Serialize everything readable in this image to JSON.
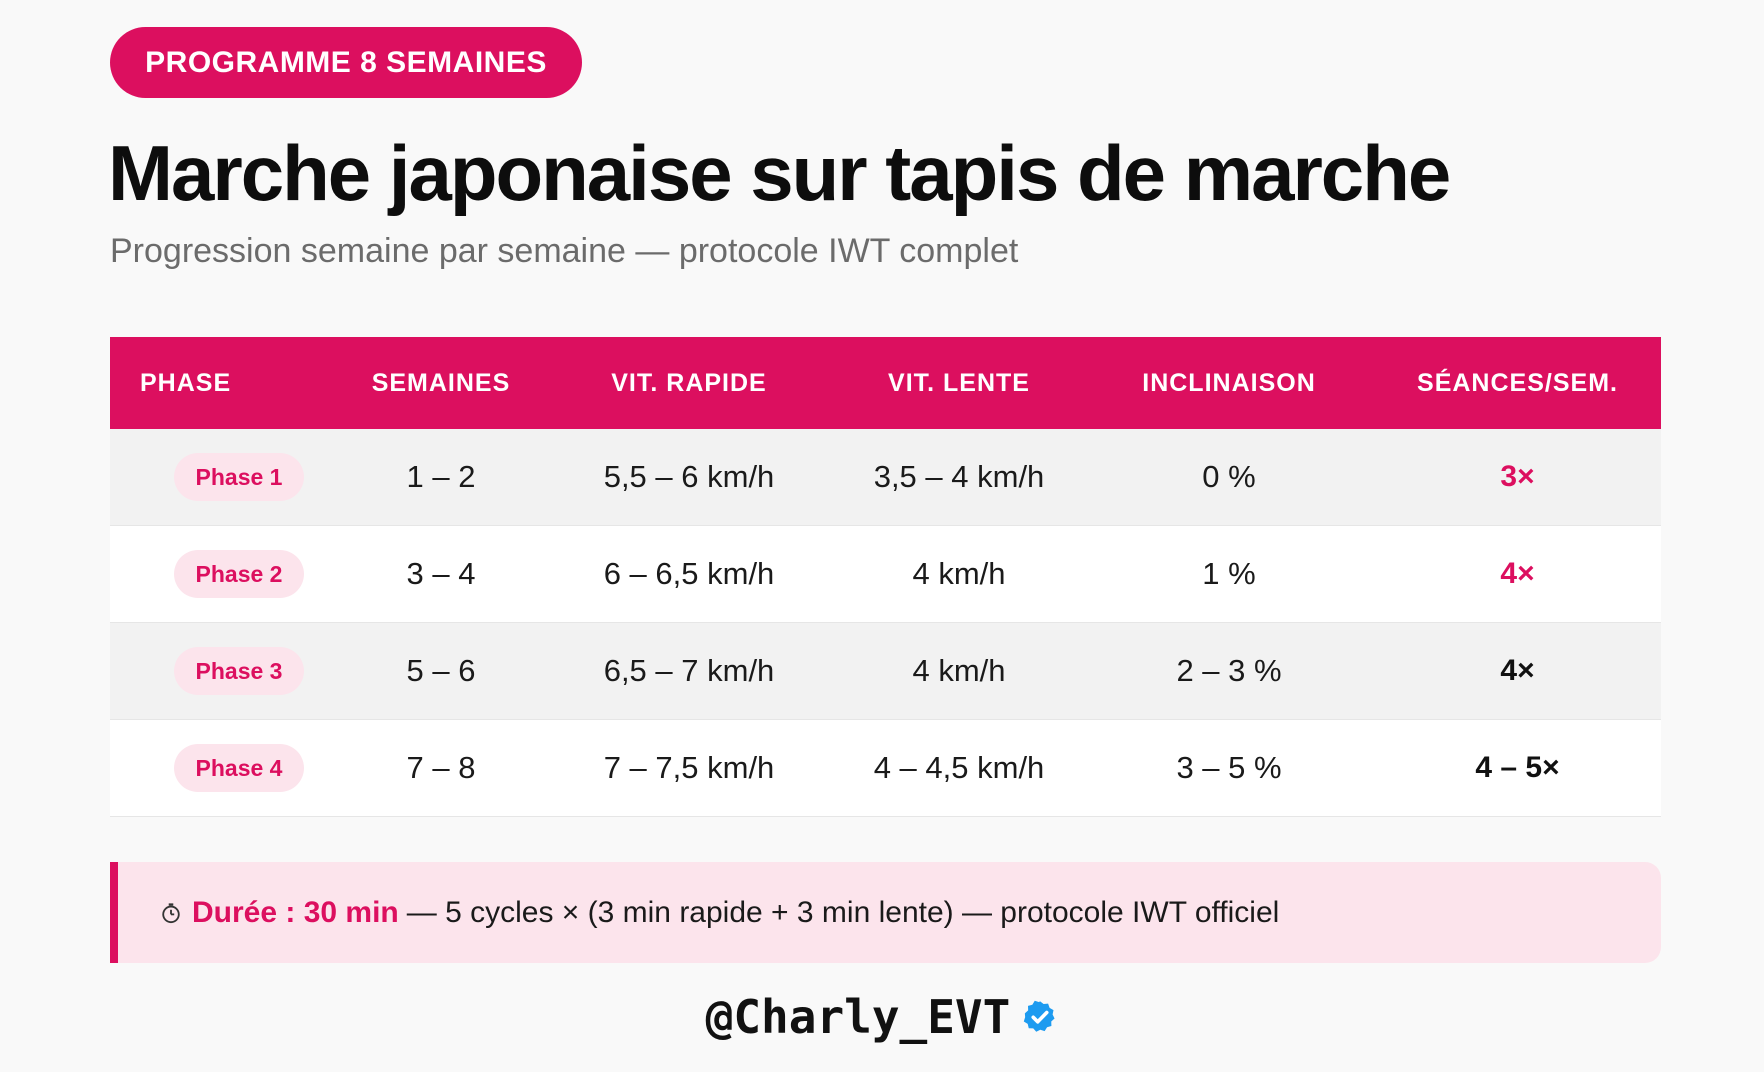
{
  "badge": {
    "label": "PROGRAMME 8 SEMAINES"
  },
  "header": {
    "title": "Marche japonaise sur tapis de marche",
    "subtitle": "Progression semaine par semaine — protocole IWT complet"
  },
  "table": {
    "headers": [
      "PHASE",
      "SEMAINES",
      "VIT. RAPIDE",
      "VIT. LENTE",
      "INCLINAISON",
      "SÉANCES/SEM."
    ],
    "rows": [
      {
        "phase": "Phase 1",
        "semaines": "1 – 2",
        "vit_rapide": "5,5 – 6 km/h",
        "vit_lente": "3,5 – 4 km/h",
        "inclinaison": "0 %",
        "seances": "3×",
        "seances_color": "#dc0f5f"
      },
      {
        "phase": "Phase 2",
        "semaines": "3 – 4",
        "vit_rapide": "6 – 6,5 km/h",
        "vit_lente": "4 km/h",
        "inclinaison": "1 %",
        "seances": "4×",
        "seances_color": "#dc0f5f"
      },
      {
        "phase": "Phase 3",
        "semaines": "5 – 6",
        "vit_rapide": "6,5 – 7 km/h",
        "vit_lente": "4 km/h",
        "inclinaison": "2 – 3 %",
        "seances": "4×",
        "seances_color": "#111111"
      },
      {
        "phase": "Phase 4",
        "semaines": "7 – 8",
        "vit_rapide": "7 – 7,5 km/h",
        "vit_lente": "4 – 4,5 km/h",
        "inclinaison": "3 – 5 %",
        "seances": "4 – 5×",
        "seances_color": "#111111"
      }
    ]
  },
  "note": {
    "icon": "stopwatch-icon",
    "highlight": "Durée : 30 min",
    "text": "— 5 cycles × (3 min rapide + 3 min lente) — protocole IWT officiel"
  },
  "footer": {
    "handle": "@Charly_EVT",
    "badge_icon": "verified-badge-icon"
  },
  "colors": {
    "accent": "#dc0f5f",
    "accent_light": "#fce4ec",
    "verified": "#1d9bf0"
  }
}
